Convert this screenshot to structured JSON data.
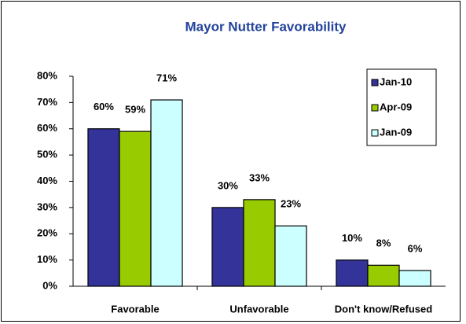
{
  "chart_data": {
    "type": "bar",
    "title": "Mayor Nutter Favorability",
    "categories": [
      "Favorable",
      "Unfavorable",
      "Don't know/Refused"
    ],
    "series": [
      {
        "name": "Jan-10",
        "color": "#333399",
        "values": [
          60,
          30,
          10
        ],
        "value_labels": [
          "60%",
          "30%",
          "10%"
        ]
      },
      {
        "name": "Apr-09",
        "color": "#99cc00",
        "values": [
          59,
          33,
          8
        ],
        "value_labels": [
          "59%",
          "33%",
          "8%"
        ]
      },
      {
        "name": "Jan-09",
        "color": "#ccffff",
        "values": [
          71,
          23,
          6
        ],
        "value_labels": [
          "71%",
          "23%",
          "6%"
        ]
      }
    ],
    "ylim": [
      0,
      80
    ],
    "yticks": [
      {
        "value": 0,
        "label": "0%"
      },
      {
        "value": 10,
        "label": "10%"
      },
      {
        "value": 20,
        "label": "20%"
      },
      {
        "value": 30,
        "label": "30%"
      },
      {
        "value": 40,
        "label": "40%"
      },
      {
        "value": 50,
        "label": "50%"
      },
      {
        "value": 60,
        "label": "60%"
      },
      {
        "value": 70,
        "label": "70%"
      },
      {
        "value": 80,
        "label": "80%"
      }
    ],
    "grid": false,
    "legend": "top-right"
  }
}
